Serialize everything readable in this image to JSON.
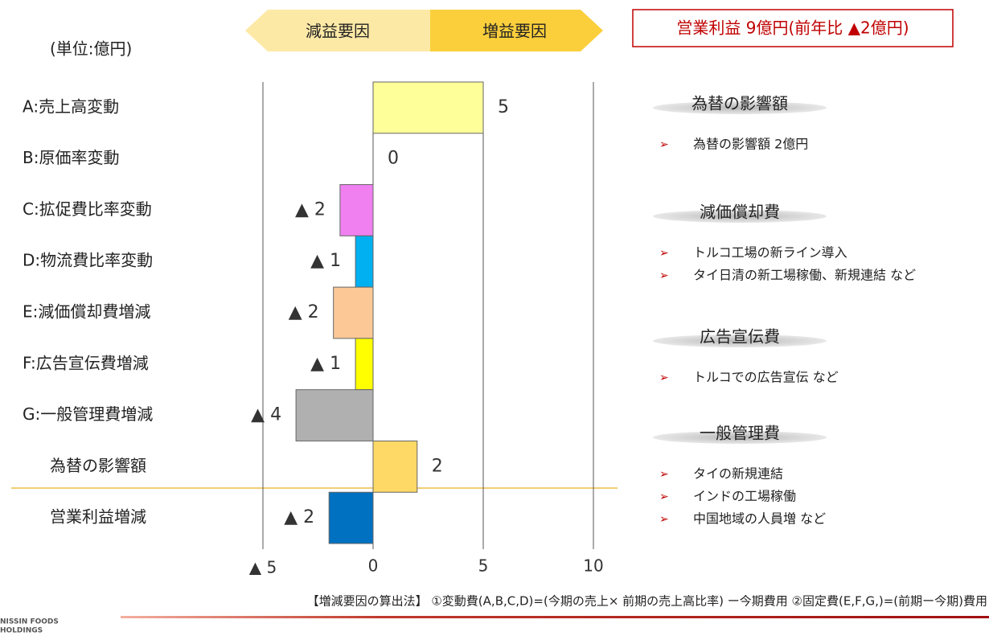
{
  "unit_label": "(単位:億円)",
  "legend_arrows": {
    "decrease": "減益要因",
    "increase": "増益要因"
  },
  "summary_box": "営業利益 9億円(前年比 ▲2億円)",
  "chart_data": {
    "type": "bar",
    "orientation": "horizontal",
    "categories": [
      "A:売上高変動",
      "B:原価率変動",
      "C:拡促費比率変動",
      "D:物流費比率変動",
      "E:減価償却費増減",
      "F:広告宣伝費増減",
      "G:一般管理費増減",
      "為替の影響額",
      "営業利益増減"
    ],
    "values": [
      5,
      0,
      -1.5,
      -0.8,
      -1.8,
      -0.8,
      -3.5,
      2,
      -2
    ],
    "value_labels": [
      "5",
      "0",
      "▲ 2",
      "▲ 1",
      "▲ 2",
      "▲ 1",
      "▲ 4",
      "2",
      "▲ 2"
    ],
    "colors": [
      "#ffff99",
      "#ffff99",
      "#f080f0",
      "#00b0f0",
      "#fcc896",
      "#ffff00",
      "#b0b0b0",
      "#ffd966",
      "#0070c0"
    ],
    "xlim": [
      -5,
      10
    ],
    "xticks": [
      {
        "value": -5,
        "label": "▲ 5"
      },
      0,
      5,
      10
    ],
    "grid": true
  },
  "notes": [
    {
      "heading": "為替の影響額",
      "items": [
        "為替の影響額 2億円"
      ]
    },
    {
      "heading": "減価償却費",
      "items": [
        "トルコ工場の新ライン導入",
        "タイ日清の新工場稼働、新規連結 など"
      ]
    },
    {
      "heading": "広告宣伝費",
      "items": [
        "トルコでの広告宣伝 など"
      ]
    },
    {
      "heading": "一般管理費",
      "items": [
        "タイの新規連結",
        "インドの工場稼働",
        "中国地域の人員増 など"
      ]
    }
  ],
  "footnote": "【増減要因の算出法】 ①変動費(A,B,C,D)=(今期の売上× 前期の売上高比率) ー今期費用 ②固定費(E,F,G,)=(前期ー今期)費用",
  "logo": [
    "NISSIN FOODS",
    "HOLDINGS"
  ]
}
